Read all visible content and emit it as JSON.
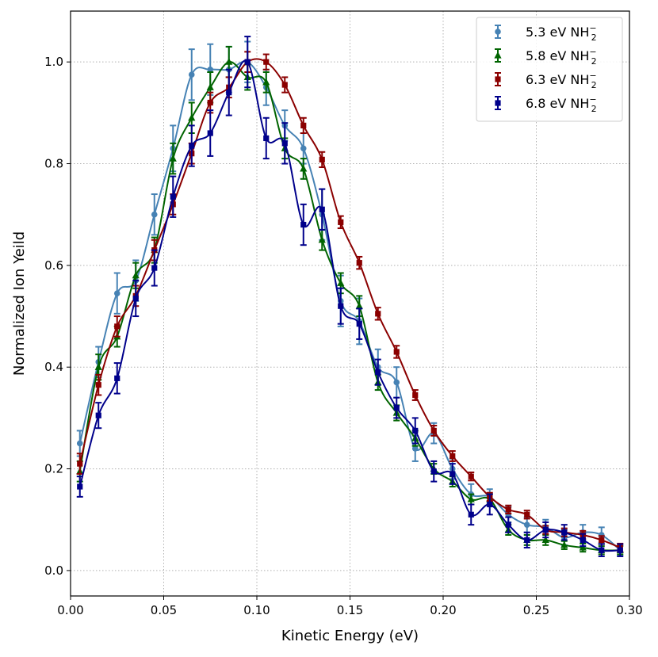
{
  "chart_data": {
    "type": "line",
    "title": "",
    "xlabel": "Kinetic Energy (eV)",
    "ylabel": "Normalized Ion Yeild",
    "xlim": [
      0.0,
      0.3
    ],
    "ylim": [
      -0.05,
      1.1
    ],
    "xticks": [
      0.0,
      0.05,
      0.1,
      0.15,
      0.2,
      0.25,
      0.3
    ],
    "xtick_labels": [
      "0.00",
      "0.05",
      "0.10",
      "0.15",
      "0.20",
      "0.25",
      "0.30"
    ],
    "yticks": [
      0.0,
      0.2,
      0.4,
      0.6,
      0.8,
      1.0
    ],
    "ytick_labels": [
      "0.0",
      "0.2",
      "0.4",
      "0.6",
      "0.8",
      "1.0"
    ],
    "grid": true,
    "legend_position": "top-right",
    "x": [
      0.005,
      0.015,
      0.025,
      0.035,
      0.045,
      0.055,
      0.065,
      0.075,
      0.085,
      0.095,
      0.105,
      0.115,
      0.125,
      0.135,
      0.145,
      0.155,
      0.165,
      0.175,
      0.185,
      0.195,
      0.205,
      0.215,
      0.225,
      0.235,
      0.245,
      0.255,
      0.265,
      0.275,
      0.285,
      0.295
    ],
    "series": [
      {
        "name": "5.3 eV NH2-",
        "label_main": "5.3 eV NH",
        "label_sub": "2",
        "label_sup": "−",
        "color": "#4682b4",
        "marker": "circle",
        "values": [
          0.25,
          0.41,
          0.545,
          0.57,
          0.7,
          0.83,
          0.975,
          0.985,
          0.985,
          1.0,
          0.95,
          0.875,
          0.83,
          0.7,
          0.53,
          0.49,
          0.4,
          0.37,
          0.24,
          0.27,
          0.2,
          0.15,
          0.145,
          0.11,
          0.09,
          0.085,
          0.065,
          0.075,
          0.07,
          0.04
        ],
        "errors": [
          0.025,
          0.03,
          0.04,
          0.04,
          0.04,
          0.045,
          0.05,
          0.05,
          0.045,
          0.04,
          0.035,
          0.03,
          0.03,
          0.05,
          0.05,
          0.045,
          0.035,
          0.03,
          0.025,
          0.02,
          0.02,
          0.02,
          0.015,
          0.015,
          0.015,
          0.015,
          0.015,
          0.015,
          0.015,
          0.01
        ]
      },
      {
        "name": "5.8 eV NH2-",
        "label_main": "5.8 eV NH",
        "label_sub": "2",
        "label_sup": "−",
        "color": "#006400",
        "marker": "triangle",
        "values": [
          0.195,
          0.4,
          0.46,
          0.58,
          0.63,
          0.81,
          0.89,
          0.95,
          1.0,
          0.97,
          0.96,
          0.83,
          0.79,
          0.65,
          0.565,
          0.52,
          0.37,
          0.31,
          0.26,
          0.2,
          0.175,
          0.14,
          0.14,
          0.08,
          0.06,
          0.06,
          0.05,
          0.045,
          0.04,
          0.04
        ],
        "errors": [
          0.02,
          0.025,
          0.02,
          0.025,
          0.025,
          0.03,
          0.03,
          0.03,
          0.03,
          0.025,
          0.02,
          0.02,
          0.02,
          0.02,
          0.02,
          0.02,
          0.015,
          0.015,
          0.015,
          0.01,
          0.01,
          0.01,
          0.01,
          0.01,
          0.01,
          0.01,
          0.008,
          0.008,
          0.008,
          0.008
        ]
      },
      {
        "name": "6.3 eV NH2-",
        "label_main": "6.3 eV NH",
        "label_sub": "2",
        "label_sup": "−",
        "color": "#8b0000",
        "marker": "square",
        "values": [
          0.21,
          0.365,
          0.48,
          0.54,
          0.63,
          0.72,
          0.82,
          0.92,
          0.95,
          1.0,
          1.0,
          0.955,
          0.875,
          0.808,
          0.685,
          0.605,
          0.505,
          0.43,
          0.345,
          0.275,
          0.225,
          0.185,
          0.145,
          0.12,
          0.11,
          0.08,
          0.075,
          0.07,
          0.06,
          0.045
        ],
        "errors": [
          0.02,
          0.02,
          0.02,
          0.02,
          0.02,
          0.02,
          0.02,
          0.02,
          0.02,
          0.02,
          0.015,
          0.015,
          0.015,
          0.015,
          0.012,
          0.012,
          0.012,
          0.012,
          0.01,
          0.01,
          0.01,
          0.008,
          0.008,
          0.008,
          0.008,
          0.008,
          0.008,
          0.008,
          0.008,
          0.008
        ]
      },
      {
        "name": "6.8 eV NH2-",
        "label_main": "6.8 eV NH",
        "label_sub": "2",
        "label_sup": "−",
        "color": "#00008b",
        "marker": "square",
        "values": [
          0.165,
          0.305,
          0.378,
          0.535,
          0.595,
          0.735,
          0.835,
          0.86,
          0.94,
          1.0,
          0.85,
          0.84,
          0.68,
          0.71,
          0.52,
          0.485,
          0.39,
          0.32,
          0.275,
          0.195,
          0.19,
          0.11,
          0.13,
          0.09,
          0.06,
          0.08,
          0.075,
          0.06,
          0.04,
          0.04
        ],
        "errors": [
          0.02,
          0.025,
          0.03,
          0.035,
          0.035,
          0.04,
          0.04,
          0.045,
          0.045,
          0.05,
          0.04,
          0.04,
          0.04,
          0.04,
          0.035,
          0.03,
          0.025,
          0.02,
          0.025,
          0.02,
          0.02,
          0.02,
          0.02,
          0.015,
          0.015,
          0.015,
          0.015,
          0.012,
          0.012,
          0.012
        ]
      }
    ]
  }
}
